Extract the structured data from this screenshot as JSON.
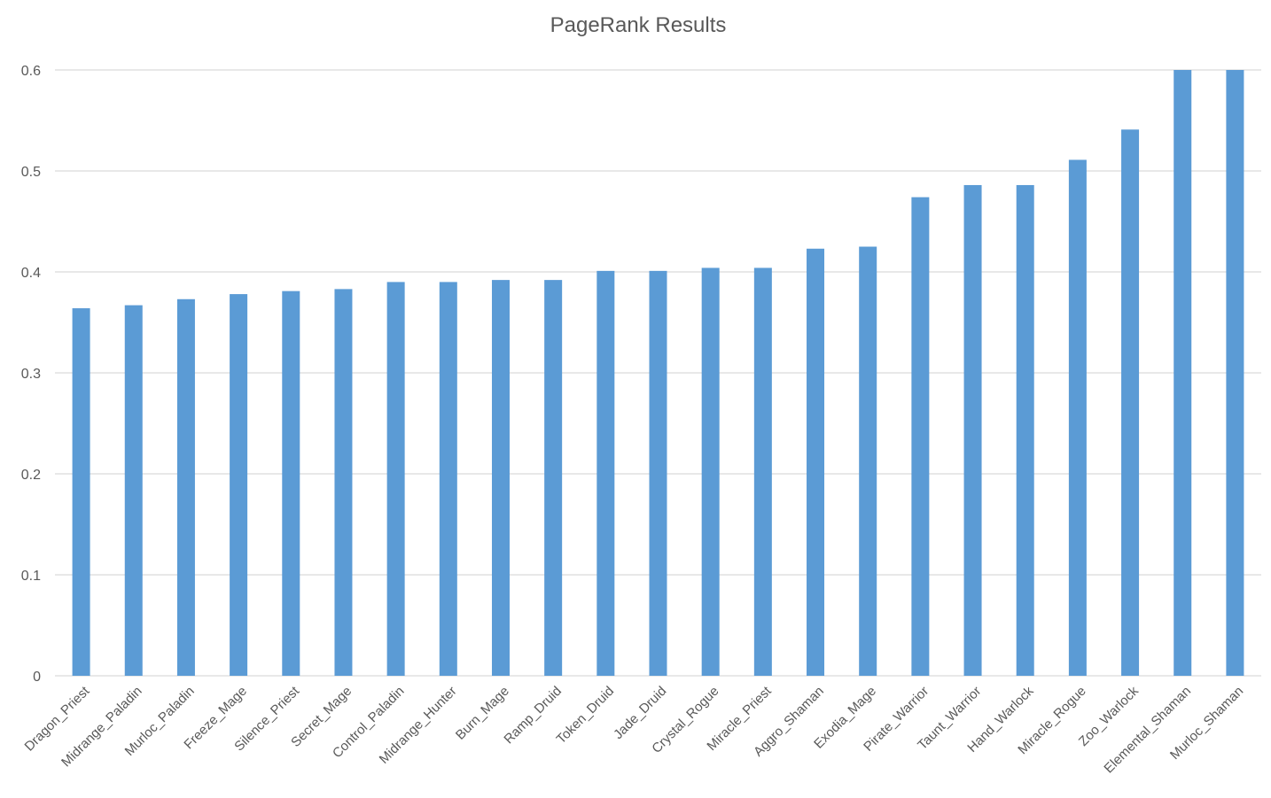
{
  "chart_data": {
    "type": "bar",
    "title": "PageRank Results",
    "xlabel": "",
    "ylabel": "",
    "ylim": [
      0,
      0.6
    ],
    "yticks": [
      "0",
      "0.1",
      "0.2",
      "0.3",
      "0.4",
      "0.5",
      "0.6"
    ],
    "grid": true,
    "legend": "none",
    "bar_color": "#5B9BD5",
    "grid_color": "#D9D9D9",
    "categories": [
      "Dragon_Priest",
      "Midrange_Paladin",
      "Murloc_Paladin",
      "Freeze_Mage",
      "Silence_Priest",
      "Secret_Mage",
      "Control_Paladin",
      "Midrange_Hunter",
      "Burn_Mage",
      "Ramp_Druid",
      "Token_Druid",
      "Jade_Druid",
      "Crystal_Rogue",
      "Miracle_Priest",
      "Aggro_Shaman",
      "Exodia_Mage",
      "Pirate_Warrior",
      "Taunt_Warrior",
      "Hand_Warlock",
      "Miracle_Rogue",
      "Zoo_Warlock",
      "Elemental_Shaman",
      "Murloc_Shaman"
    ],
    "values": [
      0.364,
      0.367,
      0.373,
      0.378,
      0.381,
      0.383,
      0.39,
      0.39,
      0.392,
      0.392,
      0.401,
      0.401,
      0.404,
      0.404,
      0.423,
      0.425,
      0.474,
      0.486,
      0.486,
      0.511,
      0.541,
      0.6,
      0.6
    ]
  }
}
